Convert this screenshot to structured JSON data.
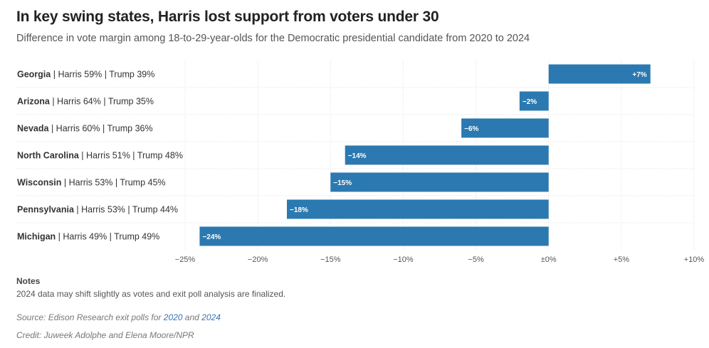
{
  "title": "In key swing states, Harris lost support from voters under 30",
  "subtitle": "Difference in vote margin among 18-to-29-year-olds for the Democratic presidential candidate from 2020 to 2024",
  "colors": {
    "bar": "#2b79b0",
    "grid": "#dddddd",
    "label_text": "#ffffff",
    "link": "#3b73b9"
  },
  "chart_data": {
    "type": "bar",
    "orientation": "horizontal",
    "categories": [
      "Georgia",
      "Arizona",
      "Nevada",
      "North Carolina",
      "Wisconsin",
      "Pennsylvania",
      "Michigan"
    ],
    "category_details": [
      " | Harris 59% | Trump 39%",
      " | Harris 64% | Trump 35%",
      " | Harris 60% | Trump 36%",
      " | Harris 51% | Trump 48%",
      " | Harris 53% | Trump 45%",
      " | Harris 53% | Trump 44%",
      " | Harris 49% | Trump 49%"
    ],
    "values": [
      7,
      -2,
      -6,
      -14,
      -15,
      -18,
      -24
    ],
    "value_labels": [
      "+7%",
      "−2%",
      "−6%",
      "−14%",
      "−15%",
      "−18%",
      "−24%"
    ],
    "xlim": [
      -25,
      10
    ],
    "xticks": [
      -25,
      -20,
      -15,
      -10,
      -5,
      0,
      5,
      10
    ],
    "xtick_labels": [
      "−25%",
      "−20%",
      "−15%",
      "−10%",
      "−5%",
      "±0%",
      "+5%",
      "+10%"
    ],
    "grid": true
  },
  "notes": {
    "heading": "Notes",
    "text": "2024 data may shift slightly as votes and exit poll analysis are finalized."
  },
  "source": {
    "prefix": "Source: Edison Research exit polls for ",
    "link1": "2020",
    "middle": " and ",
    "link2": "2024"
  },
  "credit": "Credit: Juweek Adolphe and Elena Moore/NPR"
}
